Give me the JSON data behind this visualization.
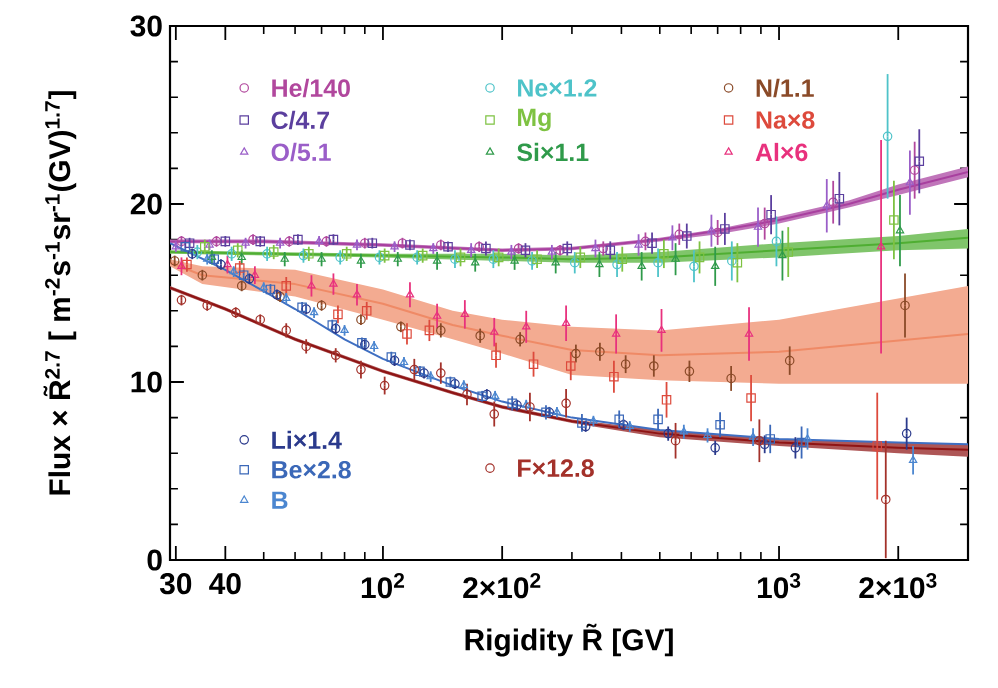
{
  "chart_data": {
    "type": "scatter",
    "xlabel": "Rigidity R̃ [GV]",
    "ylabel": "Flux × R̃$^{2.7}$ [ m$^{-2}$s$^{-1}$sr$^{-1}$(GV)$^{1.7}$]",
    "log": "x",
    "xlim": [
      29,
      3000
    ],
    "ylim": [
      0,
      30
    ],
    "xticks": [
      30,
      40,
      {
        "value": 50,
        "label": null
      },
      {
        "value": 60,
        "label": null
      },
      {
        "value": 70,
        "label": null
      },
      {
        "value": 80,
        "label": null
      },
      {
        "value": 90,
        "label": null
      },
      {
        "value": 100,
        "label": "10$^{2}$"
      },
      {
        "value": 200,
        "label": "2×10$^{2}$"
      },
      {
        "value": 300,
        "label": null
      },
      {
        "value": 400,
        "label": null
      },
      {
        "value": 500,
        "label": null
      },
      {
        "value": 600,
        "label": null
      },
      {
        "value": 700,
        "label": null
      },
      {
        "value": 800,
        "label": null
      },
      {
        "value": 900,
        "label": null
      },
      {
        "value": 1000,
        "label": "10$^{3}$"
      },
      {
        "value": 2000,
        "label": "2×10$^{3}$"
      }
    ],
    "yticks": [
      0,
      {
        "value": 2,
        "label": null
      },
      {
        "value": 4,
        "label": null
      },
      {
        "value": 6,
        "label": null
      },
      {
        "value": 8,
        "label": null
      },
      10,
      {
        "value": 12,
        "label": null
      },
      {
        "value": 14,
        "label": null
      },
      {
        "value": 16,
        "label": null
      },
      {
        "value": 18,
        "label": null
      },
      20,
      {
        "value": 22,
        "label": null
      },
      {
        "value": 24,
        "label": null
      },
      {
        "value": 26,
        "label": null
      },
      {
        "value": 28,
        "label": null
      },
      30
    ],
    "legend": "left",
    "series": [
      {
        "type": "line",
        "color": "#a8409f",
        "x": [
          29,
          50,
          100,
          200,
          300,
          500,
          700,
          1000,
          1500,
          2000,
          3000
        ],
        "values": [
          17.9,
          17.9,
          17.7,
          17.4,
          17.5,
          18.0,
          18.5,
          19.1,
          20.0,
          20.8,
          21.8
        ],
        "lower": [
          17.8,
          17.8,
          17.6,
          17.3,
          17.4,
          17.9,
          18.3,
          18.9,
          19.8,
          20.5,
          21.5
        ],
        "upper": [
          18.0,
          18.0,
          17.8,
          17.5,
          17.6,
          18.1,
          18.6,
          19.3,
          20.2,
          21.1,
          22.1
        ]
      },
      {
        "type": "line",
        "color": "#4fae32",
        "x": [
          29,
          100,
          200,
          300,
          500,
          1000,
          2000,
          3000
        ],
        "values": [
          17.3,
          17.1,
          17.0,
          16.9,
          17.0,
          17.4,
          17.8,
          18.1
        ],
        "lower": [
          17.2,
          17.0,
          16.8,
          16.7,
          16.7,
          17.0,
          17.4,
          17.5
        ],
        "upper": [
          17.4,
          17.2,
          17.2,
          17.1,
          17.3,
          17.8,
          18.2,
          18.6
        ]
      },
      {
        "type": "line",
        "color": "#ef8a66",
        "x": [
          29,
          35,
          60,
          100,
          150,
          200,
          300,
          500,
          1000,
          3000
        ],
        "values": [
          16.7,
          16.0,
          15.5,
          14.4,
          13.2,
          12.6,
          11.8,
          11.5,
          11.7,
          12.7
        ],
        "lower": [
          16.5,
          15.5,
          14.8,
          13.5,
          12.4,
          11.6,
          10.4,
          10.1,
          9.9,
          9.9
        ],
        "upper": [
          16.9,
          16.5,
          16.3,
          15.2,
          14.0,
          13.5,
          13.1,
          12.9,
          13.5,
          15.4
        ]
      },
      {
        "type": "line",
        "color": "#8e1414",
        "x": [
          29,
          40,
          60,
          100,
          150,
          200,
          300,
          500,
          1000,
          2000,
          3000
        ],
        "values": [
          15.3,
          14.1,
          12.4,
          10.6,
          9.4,
          8.6,
          7.8,
          7.1,
          6.6,
          6.3,
          6.2
        ],
        "lower": [
          15.2,
          14.0,
          12.3,
          10.5,
          9.3,
          8.5,
          7.7,
          6.9,
          6.4,
          6.0,
          5.8
        ],
        "upper": [
          15.4,
          14.2,
          12.5,
          10.7,
          9.5,
          8.7,
          7.9,
          7.3,
          6.8,
          6.6,
          6.5
        ]
      },
      {
        "type": "line",
        "color": "#3f6fc2",
        "x": [
          29,
          40,
          50,
          60,
          80,
          100,
          150,
          200,
          300,
          500,
          1000,
          2000,
          3000
        ],
        "values": [
          17.8,
          16.3,
          15.1,
          14.1,
          12.4,
          11.3,
          9.8,
          8.9,
          8.0,
          7.3,
          6.8,
          6.6,
          6.5
        ]
      },
      {
        "name": "He/140",
        "color": "#b1479d",
        "marker": "circle",
        "x": [
          31,
          38,
          47,
          58,
          72,
          90,
          112,
          140,
          175,
          220,
          280,
          360,
          460,
          560,
          700,
          920,
          1370,
          2200
        ],
        "values": [
          17.9,
          17.9,
          18.0,
          17.9,
          17.9,
          17.8,
          17.8,
          17.7,
          17.6,
          17.5,
          17.4,
          17.5,
          17.9,
          18.3,
          18.4,
          18.9,
          20.1,
          21.9
        ],
        "errors": [
          0.3,
          0.3,
          0.3,
          0.3,
          0.3,
          0.3,
          0.3,
          0.3,
          0.3,
          0.3,
          0.3,
          0.4,
          0.5,
          0.6,
          0.7,
          0.9,
          1.2,
          1.6
        ]
      },
      {
        "name": "C/4.7",
        "color": "#5b3f9e",
        "marker": "square",
        "x": [
          32.5,
          40,
          49,
          61,
          75,
          94,
          117,
          146,
          182,
          229,
          292,
          375,
          478,
          585,
          730,
          955,
          1420,
          2260
        ],
        "values": [
          17.8,
          17.9,
          17.9,
          18.0,
          18.0,
          17.8,
          17.7,
          17.6,
          17.5,
          17.4,
          17.5,
          17.4,
          17.8,
          18.2,
          18.6,
          19.4,
          20.3,
          22.4
        ],
        "errors": [
          0.3,
          0.3,
          0.3,
          0.3,
          0.3,
          0.3,
          0.3,
          0.3,
          0.4,
          0.4,
          0.4,
          0.5,
          0.6,
          0.7,
          0.9,
          1.1,
          1.5,
          1.8
        ]
      },
      {
        "name": "O/5.1",
        "color": "#9a5ec8",
        "marker": "triangle",
        "x": [
          30,
          36.5,
          45,
          55,
          69,
          86,
          107,
          134,
          167,
          211,
          267,
          344,
          442,
          538,
          675,
          885,
          1320,
          2140
        ],
        "values": [
          17.6,
          17.7,
          17.8,
          17.8,
          17.9,
          17.7,
          17.6,
          17.5,
          17.4,
          17.3,
          17.3,
          17.5,
          17.7,
          18.1,
          18.5,
          18.7,
          19.9,
          21.2
        ],
        "errors": [
          0.3,
          0.3,
          0.3,
          0.3,
          0.3,
          0.3,
          0.3,
          0.3,
          0.4,
          0.4,
          0.4,
          0.5,
          0.6,
          0.7,
          0.9,
          1.1,
          1.5,
          1.8
        ]
      },
      {
        "name": "Ne×1.2",
        "color": "#4ec3c9",
        "marker": "circle",
        "x": [
          34,
          41.5,
          51,
          63,
          78,
          98,
          122,
          152,
          190,
          238,
          305,
          390,
          495,
          610,
          760,
          985,
          1880
        ],
        "values": [
          17.3,
          17.2,
          17.2,
          17.1,
          17.0,
          17.0,
          17.0,
          16.9,
          16.9,
          16.8,
          16.7,
          16.6,
          16.7,
          16.5,
          16.8,
          17.9,
          23.8
        ],
        "errors": [
          0.4,
          0.4,
          0.4,
          0.4,
          0.4,
          0.4,
          0.4,
          0.5,
          0.5,
          0.5,
          0.6,
          0.7,
          0.8,
          0.9,
          1.1,
          1.4,
          3.5
        ]
      },
      {
        "name": "Mg",
        "color": "#7ec242",
        "marker": "square",
        "x": [
          35.5,
          43,
          53,
          65,
          81,
          101,
          126,
          157,
          196,
          245,
          315,
          402,
          512,
          630,
          785,
          1055,
          1950
        ],
        "values": [
          17.6,
          17.4,
          17.3,
          17.2,
          17.2,
          17.1,
          17.1,
          17.0,
          17.0,
          16.9,
          17.0,
          16.9,
          17.2,
          17.0,
          16.7,
          17.3,
          19.1
        ],
        "errors": [
          0.4,
          0.4,
          0.4,
          0.4,
          0.4,
          0.4,
          0.4,
          0.5,
          0.5,
          0.5,
          0.6,
          0.7,
          0.8,
          0.9,
          1.1,
          1.4,
          2.2
        ]
      },
      {
        "name": "Si×1.1",
        "color": "#2f9a4a",
        "marker": "triangle",
        "x": [
          37,
          44,
          56.5,
          70,
          88,
          109,
          137,
          171,
          215,
          273,
          352,
          450,
          548,
          690,
          1020,
          2020
        ],
        "values": [
          17.0,
          17.0,
          16.9,
          16.9,
          16.8,
          16.9,
          16.8,
          16.7,
          16.8,
          16.7,
          16.6,
          16.5,
          16.9,
          16.5,
          17.1,
          18.5
        ],
        "errors": [
          0.4,
          0.4,
          0.4,
          0.4,
          0.4,
          0.4,
          0.5,
          0.5,
          0.5,
          0.6,
          0.7,
          0.8,
          0.9,
          1.1,
          1.4,
          2.0
        ]
      },
      {
        "name": "N/1.1",
        "color": "#8a4a28",
        "marker": "circle",
        "x": [
          29.8,
          35,
          44,
          55,
          70,
          88,
          111,
          140,
          176,
          222,
          307,
          353,
          410,
          483,
          594,
          757,
          1064,
          2080
        ],
        "values": [
          16.8,
          16.0,
          15.4,
          14.8,
          14.3,
          13.5,
          13.1,
          12.9,
          12.6,
          12.4,
          11.6,
          11.7,
          11.0,
          10.9,
          10.6,
          10.2,
          11.2,
          14.3
        ],
        "errors": [
          0.3,
          0.3,
          0.3,
          0.3,
          0.3,
          0.3,
          0.3,
          0.4,
          0.4,
          0.4,
          0.5,
          0.5,
          0.5,
          0.6,
          0.6,
          0.7,
          0.8,
          1.8
        ]
      },
      {
        "name": "Na×8",
        "color": "#dd4a3c",
        "marker": "square",
        "x": [
          32,
          43.5,
          57,
          77,
          91,
          115,
          131,
          193,
          240,
          298,
          383,
          520,
          850,
          1770
        ],
        "values": [
          16.6,
          16.4,
          15.4,
          13.8,
          14.0,
          12.7,
          12.9,
          11.5,
          11.0,
          10.9,
          10.3,
          9.0,
          9.1,
          6.4
        ],
        "errors": [
          0.4,
          0.4,
          0.5,
          0.5,
          0.5,
          0.6,
          0.6,
          0.7,
          0.7,
          0.8,
          0.9,
          1.0,
          1.3,
          3.0
        ]
      },
      {
        "name": "Al×6",
        "color": "#e8317d",
        "marker": "triangle",
        "x": [
          31,
          40.5,
          47.5,
          66,
          75,
          86,
          117,
          137,
          161,
          191,
          230,
          290,
          388,
          505,
          840,
          1810
        ],
        "values": [
          16.5,
          16.6,
          16.0,
          15.4,
          15.5,
          14.9,
          14.9,
          13.7,
          13.8,
          12.8,
          13.1,
          13.3,
          12.7,
          12.9,
          12.7,
          17.6
        ],
        "errors": [
          0.5,
          0.5,
          0.5,
          0.6,
          0.6,
          0.6,
          0.7,
          0.7,
          0.8,
          0.8,
          0.9,
          1.0,
          1.1,
          1.2,
          1.5,
          6.0
        ]
      },
      {
        "name": "Li×1.4",
        "color": "#2b3a8c",
        "marker": "circle",
        "x": [
          33,
          39,
          46,
          54,
          64,
          76,
          90,
          107,
          127,
          152,
          183,
          218,
          263,
          325,
          405,
          525,
          690,
          920,
          1100,
          2100
        ],
        "values": [
          17.2,
          16.6,
          15.8,
          14.9,
          14.1,
          13.0,
          12.1,
          11.2,
          10.5,
          9.9,
          9.3,
          8.7,
          8.3,
          7.5,
          7.6,
          7.1,
          6.3,
          6.5,
          6.3,
          7.1
        ],
        "errors": [
          0.3,
          0.3,
          0.3,
          0.3,
          0.3,
          0.3,
          0.3,
          0.3,
          0.3,
          0.3,
          0.3,
          0.3,
          0.3,
          0.3,
          0.3,
          0.4,
          0.4,
          0.5,
          0.6,
          0.9
        ]
      },
      {
        "name": "Be×2.8",
        "color": "#3b68b8",
        "marker": "square",
        "x": [
          31.7,
          37.5,
          44.5,
          52,
          62.5,
          74.5,
          88.5,
          105,
          124,
          148,
          178,
          212,
          258,
          318,
          395,
          495,
          710,
          950,
          1140
        ],
        "values": [
          17.6,
          16.9,
          16.0,
          15.2,
          14.2,
          13.2,
          12.2,
          11.4,
          10.6,
          10.0,
          9.2,
          8.8,
          8.3,
          7.7,
          7.9,
          7.9,
          7.6,
          6.8,
          6.6
        ],
        "errors": [
          0.3,
          0.3,
          0.3,
          0.3,
          0.3,
          0.3,
          0.3,
          0.3,
          0.3,
          0.3,
          0.3,
          0.4,
          0.4,
          0.5,
          0.5,
          0.6,
          0.7,
          0.8,
          0.9
        ]
      },
      {
        "name": "B",
        "color": "#4b86d0",
        "marker": "triangle",
        "x": [
          36,
          42,
          50,
          57,
          67,
          80,
          95,
          113,
          132,
          160,
          192,
          230,
          275,
          340,
          420,
          575,
          660,
          860,
          1180,
          2180
        ],
        "values": [
          16.9,
          16.2,
          15.3,
          14.7,
          13.9,
          12.9,
          12.0,
          11.1,
          10.3,
          9.8,
          9.2,
          8.7,
          8.3,
          7.8,
          7.5,
          7.2,
          7.0,
          6.9,
          6.8,
          5.6
        ],
        "errors": [
          0.3,
          0.3,
          0.3,
          0.3,
          0.3,
          0.3,
          0.3,
          0.3,
          0.3,
          0.3,
          0.3,
          0.3,
          0.3,
          0.3,
          0.3,
          0.4,
          0.4,
          0.5,
          0.6,
          0.8
        ]
      },
      {
        "name": "F×12.8",
        "color": "#a3312a",
        "marker": "circle",
        "x": [
          31,
          36,
          42.5,
          49,
          57,
          64,
          76,
          88,
          101,
          120,
          140,
          163,
          191,
          235,
          290,
          548,
          892,
          1860
        ],
        "values": [
          14.6,
          14.3,
          13.9,
          13.5,
          12.9,
          12.0,
          11.5,
          10.7,
          9.8,
          10.7,
          10.5,
          9.3,
          8.2,
          8.6,
          8.8,
          6.7,
          6.7,
          3.4
        ],
        "errors": [
          0.3,
          0.3,
          0.3,
          0.3,
          0.4,
          0.4,
          0.4,
          0.5,
          0.5,
          0.6,
          0.6,
          0.6,
          0.7,
          0.8,
          0.8,
          1.0,
          1.2,
          3.3
        ]
      }
    ]
  }
}
